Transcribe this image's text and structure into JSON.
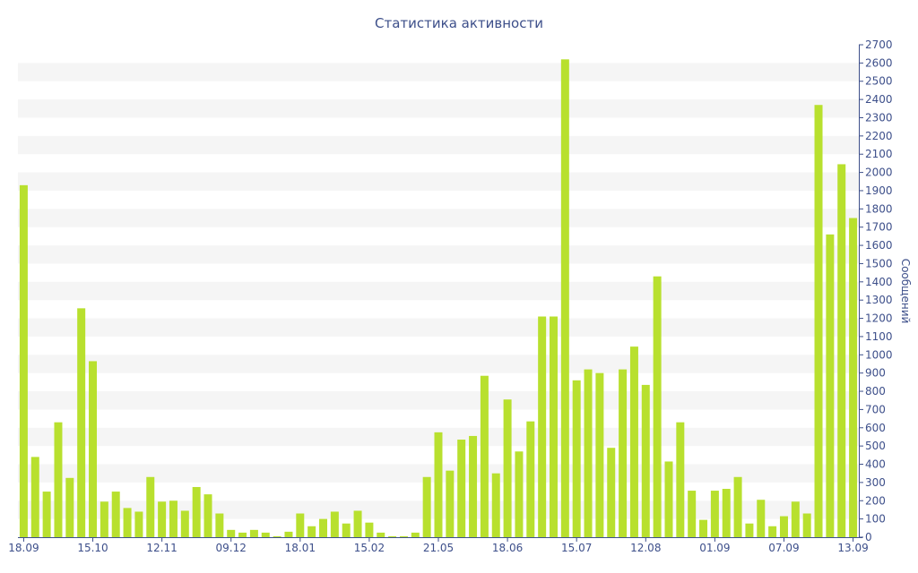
{
  "chart_data": {
    "type": "bar",
    "title": "Статистика активности",
    "xlabel": "",
    "ylabel": "Сообщений",
    "ylim": [
      0,
      2700
    ],
    "y_ticks": [
      0,
      100,
      200,
      300,
      400,
      500,
      600,
      700,
      800,
      900,
      1000,
      1100,
      1200,
      1300,
      1400,
      1500,
      1600,
      1700,
      1800,
      1900,
      2000,
      2100,
      2200,
      2300,
      2400,
      2500,
      2600,
      2700
    ],
    "y_axis_position": "right",
    "grid": "alternating horizontal bands",
    "x_tick_labels": [
      {
        "label": "18.09",
        "index": 0
      },
      {
        "label": "15.10",
        "index": 6
      },
      {
        "label": "12.11",
        "index": 12
      },
      {
        "label": "09.12",
        "index": 18
      },
      {
        "label": "18.01",
        "index": 24
      },
      {
        "label": "15.02",
        "index": 30
      },
      {
        "label": "21.05",
        "index": 36
      },
      {
        "label": "18.06",
        "index": 42
      },
      {
        "label": "15.07",
        "index": 48
      },
      {
        "label": "12.08",
        "index": 54
      },
      {
        "label": "01.09",
        "index": 60
      },
      {
        "label": "07.09",
        "index": 66
      },
      {
        "label": "13.09",
        "index": 72
      }
    ],
    "values": [
      1930,
      440,
      250,
      630,
      325,
      1255,
      965,
      195,
      250,
      160,
      140,
      330,
      195,
      200,
      145,
      275,
      235,
      130,
      40,
      25,
      40,
      25,
      5,
      30,
      130,
      60,
      100,
      140,
      75,
      145,
      80,
      25,
      5,
      5,
      25,
      330,
      575,
      365,
      535,
      555,
      885,
      350,
      755,
      470,
      635,
      1210,
      1210,
      2620,
      860,
      920,
      900,
      490,
      920,
      1045,
      835,
      1430,
      415,
      630,
      255,
      95,
      255,
      265,
      330,
      75,
      205,
      60,
      115,
      195,
      130,
      2370,
      1660,
      2045,
      1750
    ],
    "colors": {
      "bar": "#b8e02e",
      "axis": "#3d4f8a",
      "band": "#f5f5f5"
    }
  }
}
